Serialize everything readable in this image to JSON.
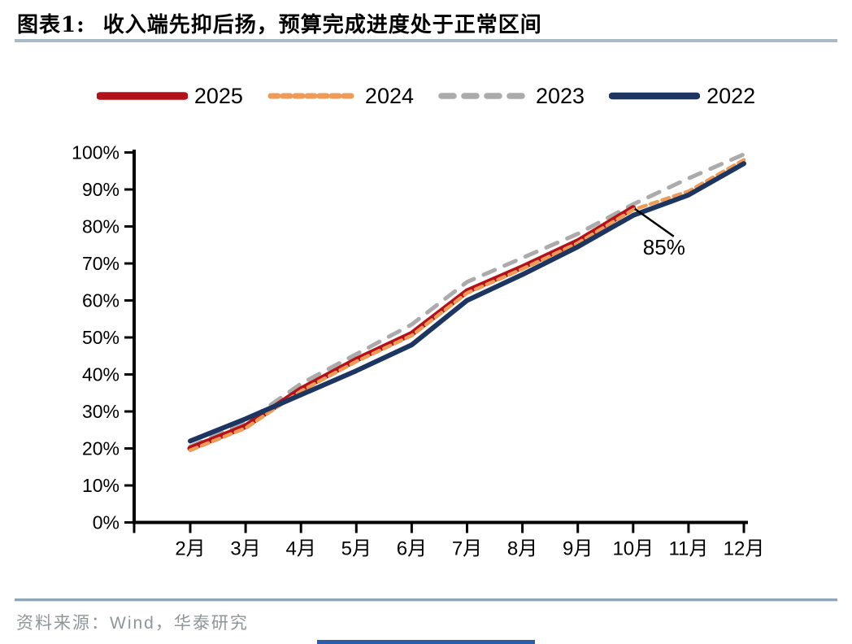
{
  "header": {
    "tag": "图表1:",
    "title": "收入端先抑后扬，预算完成进度处于正常区间"
  },
  "footer": {
    "source_label": "资料来源：Wind，华泰研究"
  },
  "colors": {
    "series_2025": "#b41219",
    "series_2024": "#ed9b57",
    "series_2023": "#ababab",
    "series_2022": "#1c3661",
    "axis": "#000000",
    "title_divider": "#a9bac5",
    "footer_divider": "#8fa6b7",
    "bottom_bar": "#2d5ca8",
    "annotation": "#000000"
  },
  "chart_data": {
    "type": "line",
    "title": "收入端先抑后扬，预算完成进度处于正常区间",
    "xlabel": "",
    "ylabel": "",
    "categories": [
      "2月",
      "3月",
      "4月",
      "5月",
      "6月",
      "7月",
      "8月",
      "9月",
      "10月",
      "11月",
      "12月"
    ],
    "series": [
      {
        "name": "2025",
        "color": "#b41219",
        "style": "solid",
        "line_width": 7,
        "values": [
          20,
          26,
          36,
          44,
          51,
          62.5,
          69,
          76,
          85,
          null,
          null
        ]
      },
      {
        "name": "2024",
        "color": "#ed9b57",
        "style": "dashed",
        "line_width": 4.5,
        "values": [
          19.5,
          25.5,
          35.5,
          43.5,
          50.5,
          62,
          68.5,
          75.5,
          84.5,
          89.5,
          98
        ]
      },
      {
        "name": "2023",
        "color": "#ababab",
        "style": "long-dash",
        "line_width": 5,
        "values": [
          20.5,
          27,
          37.5,
          45.5,
          53.5,
          65,
          71.5,
          78,
          86,
          93,
          99.5
        ]
      },
      {
        "name": "2022",
        "color": "#1c3661",
        "style": "solid",
        "line_width": 6,
        "values": [
          22,
          28,
          34.5,
          41,
          48,
          60,
          67,
          74.5,
          83,
          88.5,
          97
        ]
      }
    ],
    "yticks": [
      0,
      10,
      20,
      30,
      40,
      50,
      60,
      70,
      80,
      90,
      100
    ],
    "ytick_suffix": "%",
    "ylim": [
      0,
      100
    ],
    "grid": false,
    "legend_position": "top",
    "annotation": {
      "text": "85%",
      "series": "2025",
      "category": "10月",
      "value": 85
    }
  }
}
